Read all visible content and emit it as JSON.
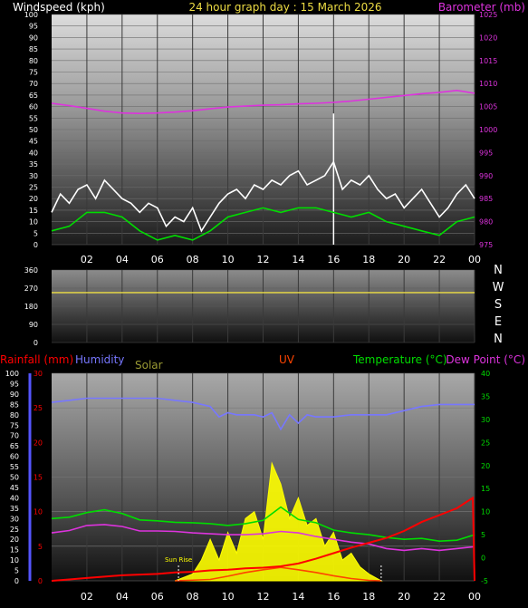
{
  "chart_data": [
    {
      "type": "line",
      "title": "24 hour graph day : 15 March 2026",
      "left_label": "Windspeed (kph)",
      "right_label": "Barometer (mb)",
      "ylim": [
        0,
        100
      ],
      "y2lim": [
        975,
        1025
      ],
      "yticks": [
        "0",
        "5",
        "10",
        "15",
        "20",
        "25",
        "30",
        "35",
        "40",
        "45",
        "50",
        "55",
        "60",
        "65",
        "70",
        "75",
        "80",
        "85",
        "90",
        "95",
        "100"
      ],
      "y2ticks": [
        "975",
        "980",
        "985",
        "990",
        "995",
        "1000",
        "1005",
        "1010",
        "1015",
        "1020",
        "1025"
      ],
      "xticks": [
        "02",
        "04",
        "06",
        "08",
        "10",
        "12",
        "14",
        "16",
        "18",
        "20",
        "22",
        "00"
      ],
      "series": [
        {
          "name": "Windspeed (kph)",
          "color": "#ffffff",
          "x": [
            0,
            0.5,
            1,
            1.5,
            2,
            2.5,
            3,
            3.5,
            4,
            4.5,
            5,
            5.5,
            6,
            6.5,
            7,
            7.5,
            8,
            8.5,
            9,
            9.5,
            10,
            10.5,
            11,
            11.5,
            12,
            12.5,
            13,
            13.5,
            14,
            14.5,
            15,
            15.5,
            16,
            16.5,
            17,
            17.5,
            18,
            18.5,
            19,
            19.5,
            20,
            20.5,
            21,
            21.5,
            22,
            22.5,
            23,
            23.5,
            24
          ],
          "y": [
            14,
            22,
            18,
            24,
            26,
            20,
            28,
            24,
            20,
            18,
            14,
            18,
            16,
            8,
            12,
            10,
            16,
            6,
            12,
            18,
            22,
            24,
            20,
            26,
            24,
            28,
            26,
            30,
            32,
            26,
            28,
            30,
            36,
            24,
            28,
            26,
            30,
            24,
            20,
            22,
            16,
            20,
            24,
            18,
            12,
            16,
            22,
            26,
            20
          ]
        },
        {
          "name": "Wind gust",
          "color": "#ffffff",
          "x": [
            16
          ],
          "y": [
            57
          ]
        },
        {
          "name": "Average windspeed",
          "color": "#00dd00",
          "x": [
            0,
            1,
            2,
            3,
            4,
            5,
            6,
            7,
            8,
            9,
            10,
            11,
            12,
            13,
            14,
            15,
            16,
            17,
            18,
            19,
            20,
            21,
            22,
            23,
            24
          ],
          "y": [
            6,
            8,
            14,
            14,
            12,
            6,
            2,
            4,
            2,
            6,
            12,
            14,
            16,
            14,
            16,
            16,
            14,
            12,
            14,
            10,
            8,
            6,
            4,
            10,
            12
          ]
        },
        {
          "name": "Barometer (mb)",
          "color": "#dd33dd",
          "x": [
            0,
            1,
            2,
            3,
            4,
            5,
            6,
            7,
            8,
            9,
            10,
            11,
            12,
            13,
            14,
            15,
            16,
            17,
            18,
            19,
            20,
            21,
            22,
            23,
            24
          ],
          "y": [
            1005.7,
            1005.2,
            1004.6,
            1004.0,
            1003.6,
            1003.5,
            1003.6,
            1003.8,
            1004.1,
            1004.5,
            1004.9,
            1005.1,
            1005.3,
            1005.4,
            1005.6,
            1005.7,
            1005.9,
            1006.2,
            1006.6,
            1007.0,
            1007.4,
            1007.8,
            1008.1,
            1008.5,
            1007.9
          ]
        }
      ]
    },
    {
      "type": "line",
      "title": "",
      "ylim": [
        0,
        360
      ],
      "yticks": [
        "0",
        "90",
        "180",
        "270",
        "360"
      ],
      "compass": [
        "N",
        "W",
        "S",
        "E",
        "N"
      ],
      "series": [
        {
          "name": "Wind direction",
          "color": "#eedd44",
          "x": [
            0,
            24
          ],
          "y": [
            248,
            248
          ]
        }
      ]
    },
    {
      "type": "line",
      "labels": {
        "rainfall": "Rainfall (mm)",
        "humidity": "Humidity",
        "solar": "Solar",
        "uv": "UV",
        "temperature": "Temperature (°C)",
        "dewpoint": "Dew Point (°C)",
        "sunrise": "Sun Rise"
      },
      "humidity_ylim": [
        0,
        100
      ],
      "rain_ylim": [
        0,
        30
      ],
      "temp_ylim": [
        -5,
        40
      ],
      "humidity_ticks": [
        "0",
        "5",
        "10",
        "15",
        "20",
        "25",
        "30",
        "35",
        "40",
        "45",
        "50",
        "55",
        "60",
        "65",
        "70",
        "75",
        "80",
        "85",
        "90",
        "95",
        "100"
      ],
      "rain_ticks": [
        "0",
        "5",
        "10",
        "15",
        "20",
        "25",
        "30"
      ],
      "temp_ticks": [
        "-5",
        "0",
        "5",
        "10",
        "15",
        "20",
        "25",
        "30",
        "35",
        "40"
      ],
      "xticks": [
        "02",
        "04",
        "06",
        "08",
        "10",
        "12",
        "14",
        "16",
        "18",
        "20",
        "22",
        "00"
      ],
      "sunrise_hour": 7.2,
      "sunset_hour": 18.7,
      "series": [
        {
          "name": "Humidity",
          "color": "#7777ff",
          "x": [
            0,
            1,
            2,
            3,
            4,
            5,
            6,
            7,
            8,
            9,
            9.5,
            10,
            10.5,
            11,
            11.5,
            12,
            12.5,
            13,
            13.5,
            14,
            14.5,
            15,
            16,
            17,
            18,
            19,
            20,
            21,
            22,
            23,
            24
          ],
          "y": [
            86,
            87,
            88,
            88,
            88,
            88,
            88,
            87,
            86,
            84,
            79,
            81,
            80,
            80,
            80,
            79,
            81,
            73,
            80,
            76,
            80,
            79,
            79,
            80,
            80,
            80,
            82,
            84,
            85,
            85,
            85
          ]
        },
        {
          "name": "Temperature (°C)",
          "color": "#00dd00",
          "x": [
            0,
            1,
            2,
            3,
            4,
            5,
            6,
            7,
            8,
            9,
            10,
            11,
            12,
            13,
            14,
            15,
            16,
            17,
            18,
            19,
            20,
            21,
            22,
            23,
            24
          ],
          "y": [
            8.5,
            8.8,
            9.8,
            10.4,
            9.6,
            8.2,
            8.0,
            7.7,
            7.6,
            7.4,
            7.0,
            7.4,
            8.1,
            11.0,
            8.3,
            7.6,
            6.0,
            5.4,
            5.0,
            4.4,
            4.0,
            4.2,
            3.6,
            3.8,
            5.0
          ]
        },
        {
          "name": "Dew Point (°C)",
          "color": "#dd33dd",
          "x": [
            0,
            1,
            2,
            3,
            4,
            5,
            6,
            7,
            8,
            9,
            10,
            11,
            12,
            13,
            14,
            15,
            16,
            17,
            18,
            19,
            20,
            21,
            22,
            23,
            24
          ],
          "y": [
            5.4,
            5.9,
            7.0,
            7.2,
            6.8,
            5.8,
            5.8,
            5.7,
            5.4,
            5.2,
            5.0,
            5.0,
            5.2,
            5.7,
            5.4,
            4.6,
            4.0,
            3.4,
            3.0,
            2.0,
            1.6,
            2.0,
            1.6,
            2.0,
            2.4
          ]
        },
        {
          "name": "Rainfall (mm)",
          "color": "#ff0000",
          "x": [
            0,
            1,
            2,
            3,
            4,
            5,
            6,
            7,
            8,
            9,
            10,
            11,
            12,
            13,
            14,
            15,
            16,
            17,
            18,
            19,
            20,
            21,
            22,
            23,
            23.9,
            24
          ],
          "y": [
            0.0,
            0.2,
            0.4,
            0.6,
            0.8,
            0.9,
            1.0,
            1.2,
            1.3,
            1.5,
            1.6,
            1.8,
            1.9,
            2.1,
            2.5,
            3.2,
            4.0,
            4.8,
            5.5,
            6.2,
            7.2,
            8.5,
            9.5,
            10.5,
            12.0,
            0.0
          ]
        },
        {
          "name": "Solar",
          "color": "#ffff00",
          "x": [
            7,
            8,
            8.5,
            9,
            9.5,
            10,
            10.5,
            11,
            11.5,
            12,
            12.5,
            13,
            13.5,
            14,
            14.5,
            15,
            15.5,
            16,
            16.5,
            17,
            17.5,
            18,
            18.7
          ],
          "y": [
            0,
            1.0,
            3.0,
            6.0,
            3.0,
            7.0,
            4.0,
            9.0,
            10.0,
            6.0,
            17.0,
            14.0,
            9.0,
            12.0,
            8.0,
            9.0,
            5.0,
            7.0,
            3.0,
            4.0,
            2.0,
            1.0,
            0
          ]
        },
        {
          "name": "UV",
          "color": "#ff4400",
          "x": [
            7,
            9,
            10,
            11,
            12,
            13,
            14,
            15,
            16,
            17,
            18,
            18.7
          ],
          "y": [
            -5,
            -4.7,
            -4.0,
            -3.2,
            -2.6,
            -2.1,
            -2.6,
            -3.2,
            -3.9,
            -4.5,
            -4.9,
            -5
          ]
        }
      ]
    }
  ]
}
